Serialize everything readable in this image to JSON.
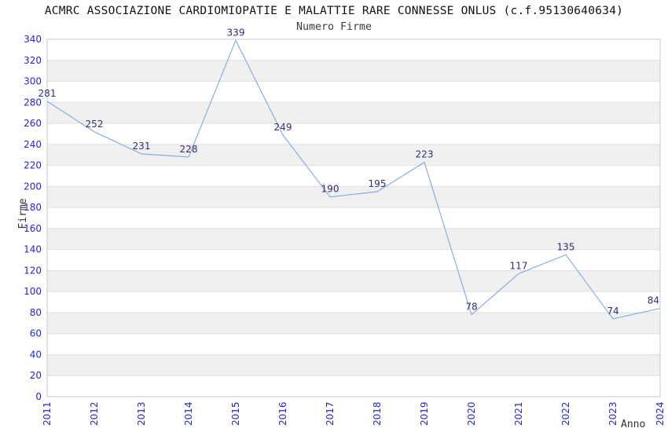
{
  "header": {
    "title": "ACMRC ASSOCIAZIONE CARDIOMIOPATIE E MALATTIE RARE CONNESSE ONLUS (c.f.95130640634)",
    "subtitle": "Numero Firme"
  },
  "chart_data": {
    "type": "line",
    "title": "Numero Firme",
    "categories": [
      "2011",
      "2012",
      "2013",
      "2014",
      "2015",
      "2016",
      "2017",
      "2018",
      "2019",
      "2020",
      "2021",
      "2022",
      "2023",
      "2024"
    ],
    "values": [
      281,
      252,
      231,
      228,
      339,
      249,
      190,
      195,
      223,
      78,
      117,
      135,
      74,
      84
    ],
    "xlabel": "Anno",
    "ylabel": "Firme",
    "ylim": [
      0,
      340
    ],
    "ytick_step": 20,
    "grid": true,
    "legend": "none",
    "band_fill_alternate": true,
    "data_labels": true,
    "colors": {
      "line": "#82b1e6",
      "tick_label": "#2424dd",
      "data_label": "#2e2e7d",
      "band_gray": "#f0f0f0",
      "band_white": "#ffffff",
      "gridline": "#e0e0e0",
      "plot_border": "#c8c8c8",
      "axis_title": "#333333"
    }
  }
}
